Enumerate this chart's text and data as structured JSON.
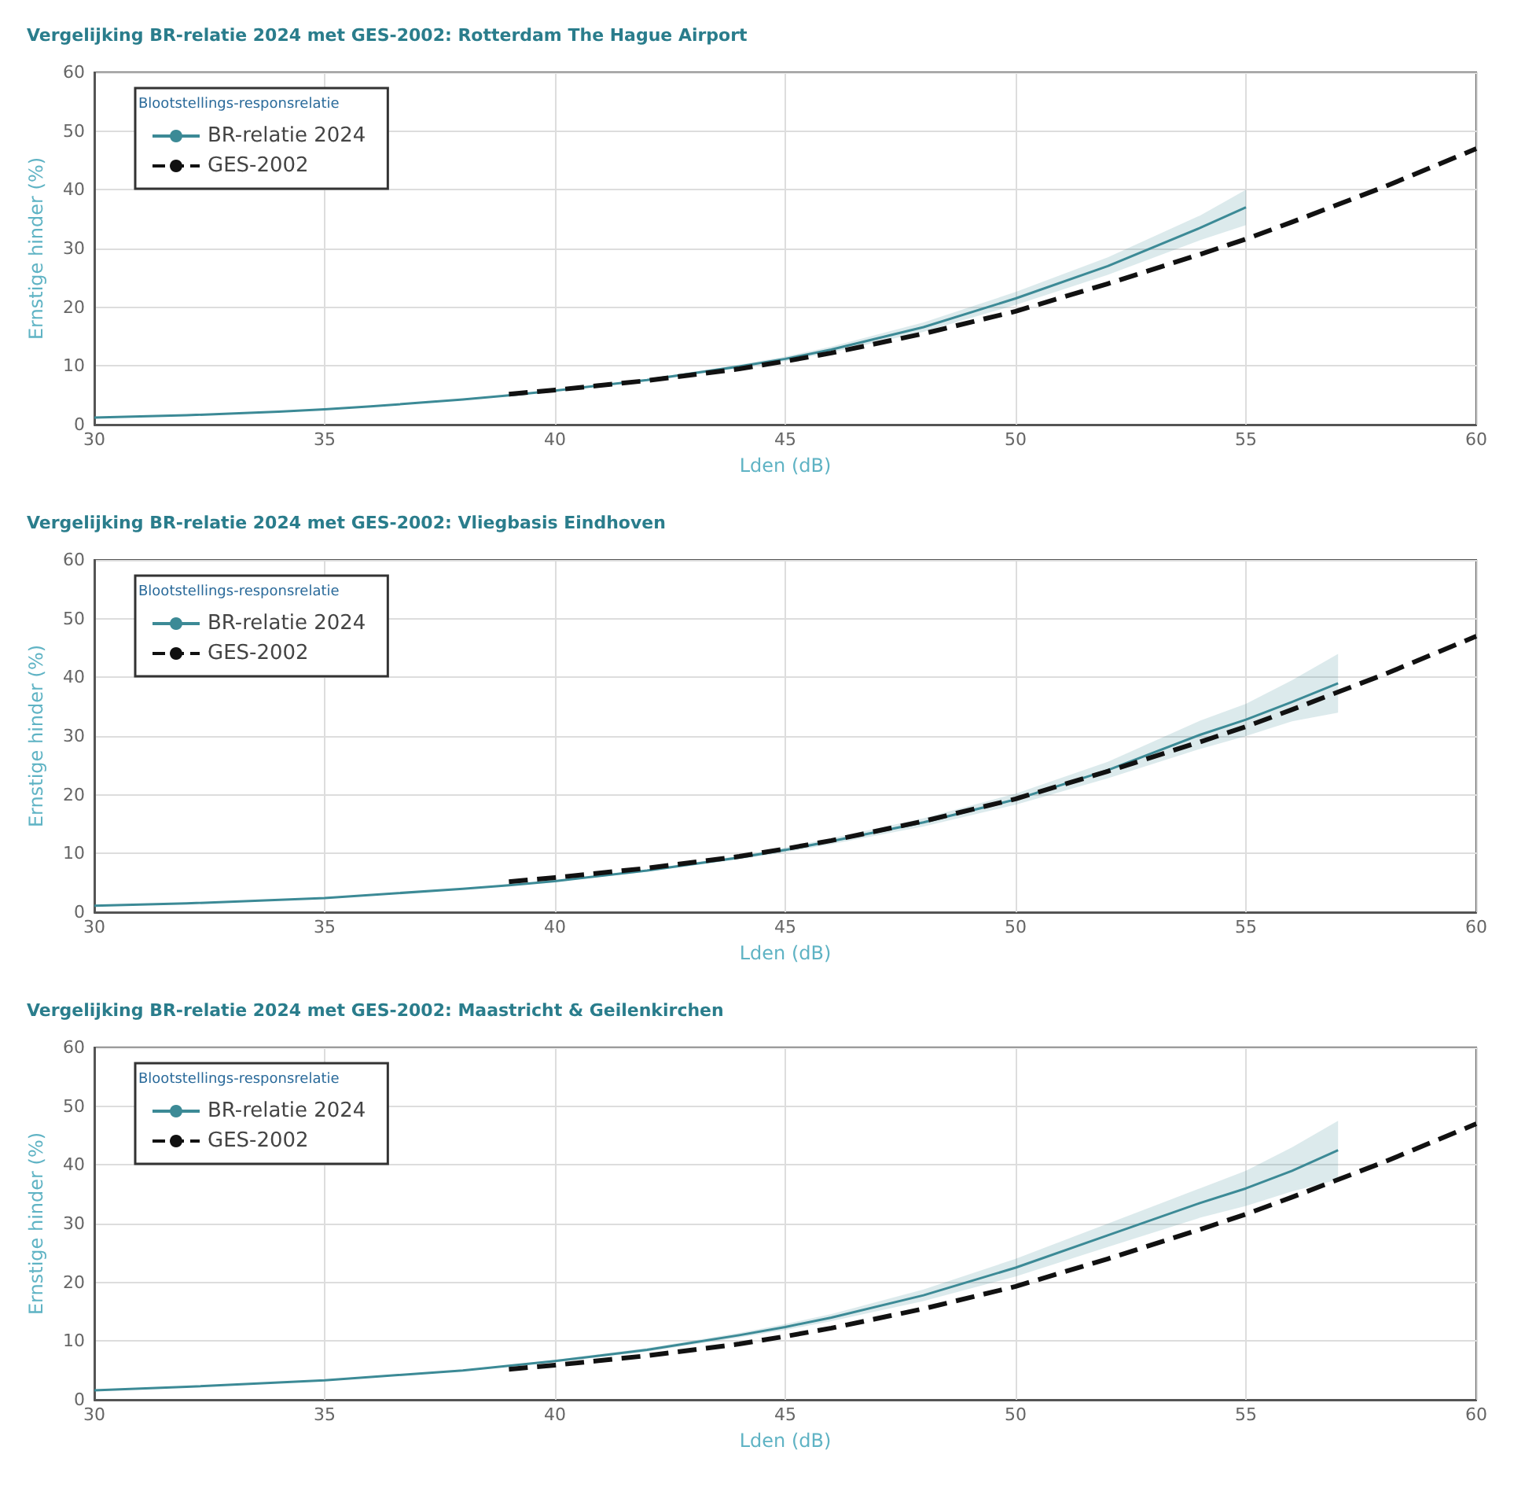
{
  "chart_data": [
    {
      "type": "line",
      "title": "Vergelijking BR-relatie 2024 met GES-2002: Rotterdam The Hague Airport",
      "xlabel": "Lden (dB)",
      "ylabel": "Ernstige hinder (%)",
      "legend_title": "Blootstellings-responsrelatie",
      "xlim": [
        30,
        60
      ],
      "xticks": [
        30,
        35,
        40,
        45,
        50,
        55,
        60
      ],
      "ylim": [
        0,
        60
      ],
      "yticks": [
        0,
        10,
        20,
        30,
        40,
        50,
        60
      ],
      "grid": true,
      "legend": "top left",
      "series": [
        {
          "name": "BR-relatie 2024",
          "color": "#3c8a96",
          "line_style": "solid",
          "x": [
            30,
            32,
            34,
            35,
            36,
            38,
            39,
            40,
            42,
            44,
            45,
            46,
            48,
            50,
            52,
            54,
            55
          ],
          "values": [
            1.2,
            1.6,
            2.2,
            2.6,
            3.1,
            4.3,
            5.0,
            5.8,
            7.6,
            9.9,
            11.2,
            12.8,
            16.6,
            21.5,
            27.0,
            33.5,
            37
          ],
          "lower": [
            1.2,
            1.6,
            2.2,
            2.6,
            3.1,
            4.3,
            5.0,
            5.7,
            7.4,
            9.6,
            10.8,
            12.3,
            15.8,
            20.4,
            25.5,
            31.4,
            34
          ],
          "upper": [
            1.2,
            1.6,
            2.2,
            2.6,
            3.1,
            4.3,
            5.0,
            5.9,
            7.8,
            10.2,
            11.6,
            13.3,
            17.4,
            22.6,
            28.5,
            35.6,
            40
          ]
        },
        {
          "name": "GES-2002",
          "color": "#111111",
          "line_style": "dashed",
          "x": [
            39,
            40,
            42,
            44,
            45,
            46,
            48,
            50,
            52,
            54,
            55,
            56,
            58,
            60
          ],
          "values": [
            5.2,
            5.9,
            7.5,
            9.5,
            10.8,
            12.2,
            15.5,
            19.3,
            24,
            29,
            31.6,
            34.5,
            40.5,
            47
          ]
        }
      ]
    },
    {
      "type": "line",
      "title": "Vergelijking BR-relatie 2024 met GES-2002: Vliegbasis Eindhoven",
      "xlabel": "Lden (dB)",
      "ylabel": "Ernstige hinder (%)",
      "legend_title": "Blootstellings-responsrelatie",
      "xlim": [
        30,
        60
      ],
      "xticks": [
        30,
        35,
        40,
        45,
        50,
        55,
        60
      ],
      "ylim": [
        0,
        60
      ],
      "yticks": [
        0,
        10,
        20,
        30,
        40,
        50,
        60
      ],
      "grid": true,
      "legend": "top left",
      "series": [
        {
          "name": "BR-relatie 2024",
          "color": "#3c8a96",
          "line_style": "solid",
          "x": [
            30,
            32,
            35,
            38,
            39,
            40,
            42,
            44,
            45,
            46,
            48,
            50,
            52,
            54,
            55,
            56,
            57
          ],
          "values": [
            1.1,
            1.5,
            2.4,
            4.0,
            4.6,
            5.3,
            7.1,
            9.3,
            10.6,
            12.1,
            15.3,
            19.2,
            24.2,
            30.2,
            32.8,
            35.8,
            39
          ],
          "lower": [
            1.1,
            1.5,
            2.4,
            4.0,
            4.6,
            5.2,
            6.9,
            9.0,
            10.2,
            11.6,
            14.6,
            18.3,
            22.8,
            27.8,
            30,
            32.5,
            34
          ],
          "upper": [
            1.1,
            1.5,
            2.4,
            4.0,
            4.6,
            5.4,
            7.3,
            9.6,
            11.0,
            12.6,
            16.0,
            20.2,
            25.6,
            32.6,
            35.5,
            39.5,
            44
          ]
        },
        {
          "name": "GES-2002",
          "color": "#111111",
          "line_style": "dashed",
          "x": [
            39,
            40,
            42,
            44,
            45,
            46,
            48,
            50,
            52,
            54,
            55,
            56,
            58,
            60
          ],
          "values": [
            5.2,
            5.9,
            7.5,
            9.5,
            10.8,
            12.2,
            15.5,
            19.3,
            24,
            29,
            31.6,
            34.5,
            40.5,
            47
          ]
        }
      ]
    },
    {
      "type": "line",
      "title": "Vergelijking BR-relatie 2024 met GES-2002: Maastricht & Geilenkirchen",
      "xlabel": "Lden (dB)",
      "ylabel": "Ernstige hinder (%)",
      "legend_title": "Blootstellings-responsrelatie",
      "xlim": [
        30,
        60
      ],
      "xticks": [
        30,
        35,
        40,
        45,
        50,
        55,
        60
      ],
      "ylim": [
        0,
        60
      ],
      "yticks": [
        0,
        10,
        20,
        30,
        40,
        50,
        60
      ],
      "grid": true,
      "legend": "top left",
      "series": [
        {
          "name": "BR-relatie 2024",
          "color": "#3c8a96",
          "line_style": "solid",
          "x": [
            30,
            32,
            35,
            38,
            39,
            40,
            42,
            44,
            45,
            46,
            48,
            50,
            52,
            54,
            55,
            56,
            57
          ],
          "values": [
            1.6,
            2.2,
            3.3,
            5.0,
            5.8,
            6.6,
            8.5,
            11.0,
            12.4,
            14.0,
            17.8,
            22.5,
            28,
            33.5,
            36,
            39,
            42.5
          ],
          "lower": [
            1.6,
            2.2,
            3.3,
            5.0,
            5.7,
            6.4,
            8.2,
            10.6,
            11.9,
            13.4,
            16.8,
            21,
            26,
            31,
            33,
            35.5,
            37.5
          ],
          "upper": [
            1.6,
            2.2,
            3.3,
            5.0,
            5.9,
            6.8,
            8.8,
            11.4,
            12.9,
            14.6,
            18.8,
            24,
            30,
            36,
            39,
            43,
            47.5
          ]
        },
        {
          "name": "GES-2002",
          "color": "#111111",
          "line_style": "dashed",
          "x": [
            39,
            40,
            42,
            44,
            45,
            46,
            48,
            50,
            52,
            54,
            55,
            56,
            58,
            60
          ],
          "values": [
            5.2,
            5.9,
            7.5,
            9.5,
            10.8,
            12.2,
            15.5,
            19.3,
            24,
            29,
            31.6,
            34.5,
            40.5,
            47
          ]
        }
      ]
    }
  ]
}
